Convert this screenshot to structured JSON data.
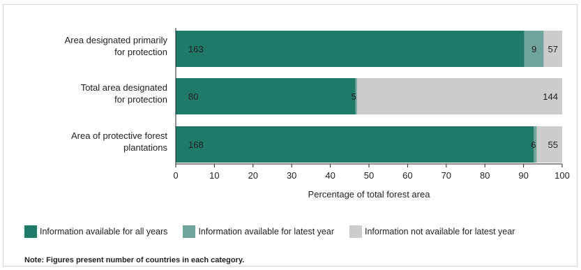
{
  "chart_data": {
    "type": "bar",
    "orientation": "horizontal",
    "stacked": true,
    "categories": [
      "Area designated primarily for protection",
      "Total area designated for protection",
      "Area of protective forest plantations"
    ],
    "category_lines": [
      [
        "Area designated primarily",
        "for protection"
      ],
      [
        "Total area designated",
        "for protection"
      ],
      [
        "Area of protective forest",
        "plantations"
      ]
    ],
    "series": [
      {
        "name": "Information available for all years",
        "color": "#1f7a6a",
        "values": [
          90.2,
          46.5,
          92.6
        ],
        "labels": [
          "163",
          "80",
          "168"
        ]
      },
      {
        "name": "Information available for latest year",
        "color": "#6fa49c",
        "values": [
          5.0,
          0.4,
          0.8
        ],
        "labels": [
          "9",
          "5",
          "6"
        ]
      },
      {
        "name": "Information not available for latest year",
        "color": "#cccccc",
        "values": [
          4.8,
          53.1,
          6.6
        ],
        "labels": [
          "57",
          "144",
          "55"
        ]
      }
    ],
    "xlabel": "Percentage of total forest area",
    "xlim": [
      0,
      100
    ],
    "xticks": [
      0,
      10,
      20,
      30,
      40,
      50,
      60,
      70,
      80,
      90,
      100
    ],
    "legend_position": "bottom",
    "grid": false
  },
  "note": "Note: Figures present number of countries in each category."
}
